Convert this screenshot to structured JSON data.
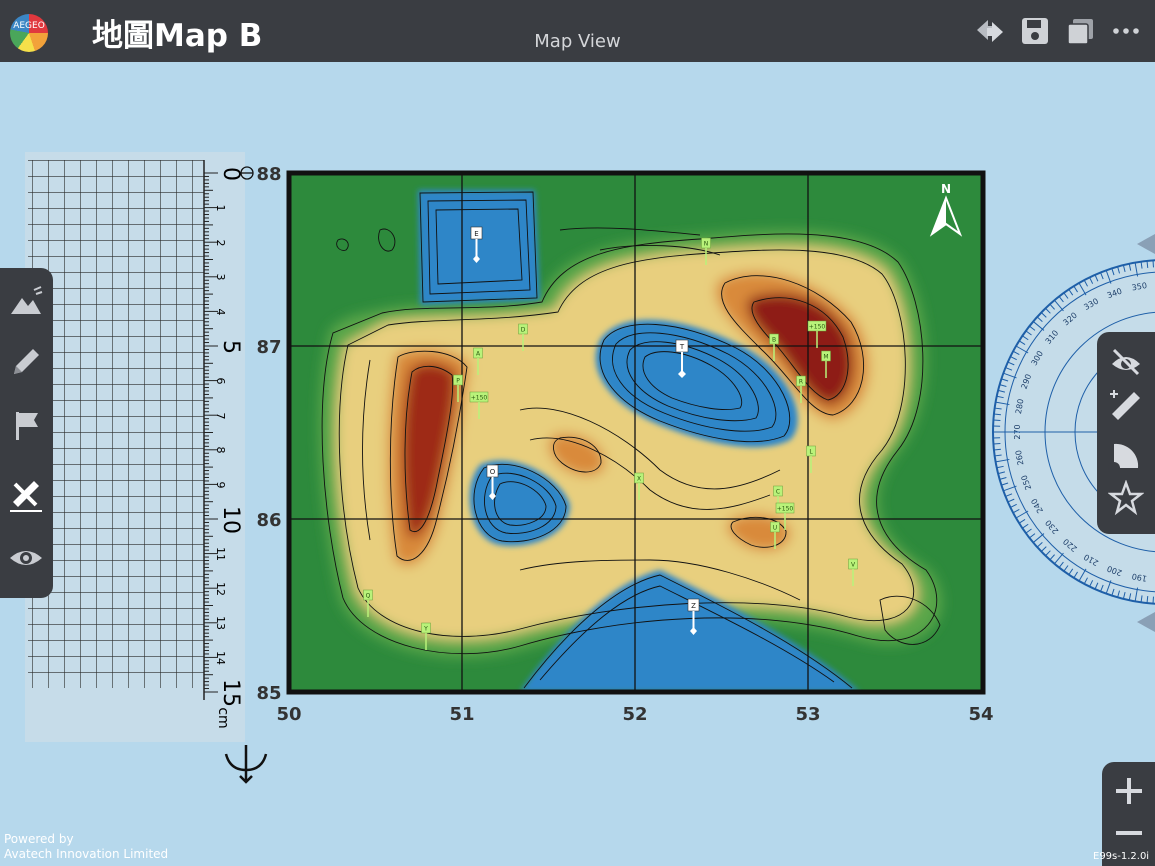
{
  "app": {
    "logo_text": "AEGEO",
    "title": "地圖Map B",
    "view_title": "Map View",
    "powered_by": "Powered by",
    "company": "Avatech Innovation Limited",
    "version": "E99s-1.2.0i"
  },
  "toolbar": {
    "icons": [
      "upload-download-icon",
      "save-icon",
      "layers-icon",
      "more-icon"
    ]
  },
  "left_toolbar": {
    "items": [
      "terrain-icon",
      "pencil-icon",
      "flag-icon",
      "ruler-tools-icon",
      "eye-icon"
    ],
    "active": "ruler-tools-icon"
  },
  "right_toolbar": {
    "items": [
      "eye-hide-icon",
      "ruler-icon",
      "protractor-icon",
      "star-icon"
    ]
  },
  "zoom": {
    "in": "+",
    "out": "−"
  },
  "ruler": {
    "major_labels": [
      "0",
      "5",
      "10",
      "15"
    ],
    "minor_labels": [
      "1",
      "2",
      "3",
      "4",
      "6",
      "7",
      "8",
      "9",
      "11",
      "12",
      "13",
      "14"
    ],
    "unit": "cm"
  },
  "map": {
    "north_label": "N",
    "x_labels": [
      "50",
      "51",
      "52",
      "53",
      "54"
    ],
    "y_labels": [
      "88",
      "87",
      "86",
      "85"
    ],
    "points_white": [
      "E",
      "T",
      "O",
      "Z"
    ],
    "points_green": [
      "N",
      "D",
      "A",
      "P",
      "+150",
      "+150",
      "M",
      "R",
      "B",
      "L",
      "X",
      "C",
      "+150",
      "U",
      "V",
      "Q",
      "Y"
    ]
  },
  "protractor": {
    "labels": [
      "270",
      "280",
      "290",
      "300",
      "310",
      "320",
      "330",
      "340",
      "350",
      "260",
      "250",
      "240",
      "230",
      "220",
      "210",
      "200",
      "190"
    ]
  },
  "colors": {
    "topbar": "#3a3d42",
    "background": "#b6d8ec",
    "deep_water": "#2f86c8",
    "lowland": "#2f8a3d",
    "highland": "#ecd384",
    "peak": "#8a1a16"
  }
}
